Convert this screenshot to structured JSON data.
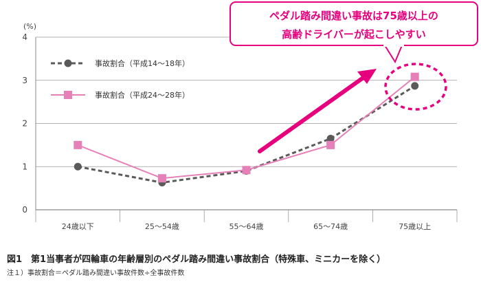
{
  "chart_data": {
    "type": "line",
    "unit_label": "(%)",
    "categories": [
      "24歳以下",
      "25〜54歳",
      "55〜64歳",
      "65〜74歳",
      "75歳以上"
    ],
    "ylim": [
      0,
      4
    ],
    "yticks": [
      0,
      1,
      2,
      3,
      4
    ],
    "grid": true,
    "legend_position": "top-left",
    "series": [
      {
        "name": "事故割合（平成14〜18年）",
        "values": [
          1.0,
          0.63,
          0.9,
          1.65,
          2.87
        ],
        "color": "#5a5a5a",
        "style": "dashed",
        "marker": "circle"
      },
      {
        "name": "事故割合（平成24〜28年）",
        "values": [
          1.5,
          0.73,
          0.92,
          1.5,
          3.08
        ],
        "color": "#e580b8",
        "style": "solid",
        "marker": "square"
      }
    ],
    "annotation": {
      "line1": "ペダル踏み間違い事故は75歳以上の",
      "line2": "高齢ドライバーが起こしやすい",
      "color": "#e6007e"
    }
  },
  "caption": "図1　第1当事者が四輪車の年齢層別のペダル踏み間違い事故割合（特殊車、ミニカーを除く）",
  "note": "注１）事故割合＝ペダル踏み間違い事故件数÷全事故件数"
}
